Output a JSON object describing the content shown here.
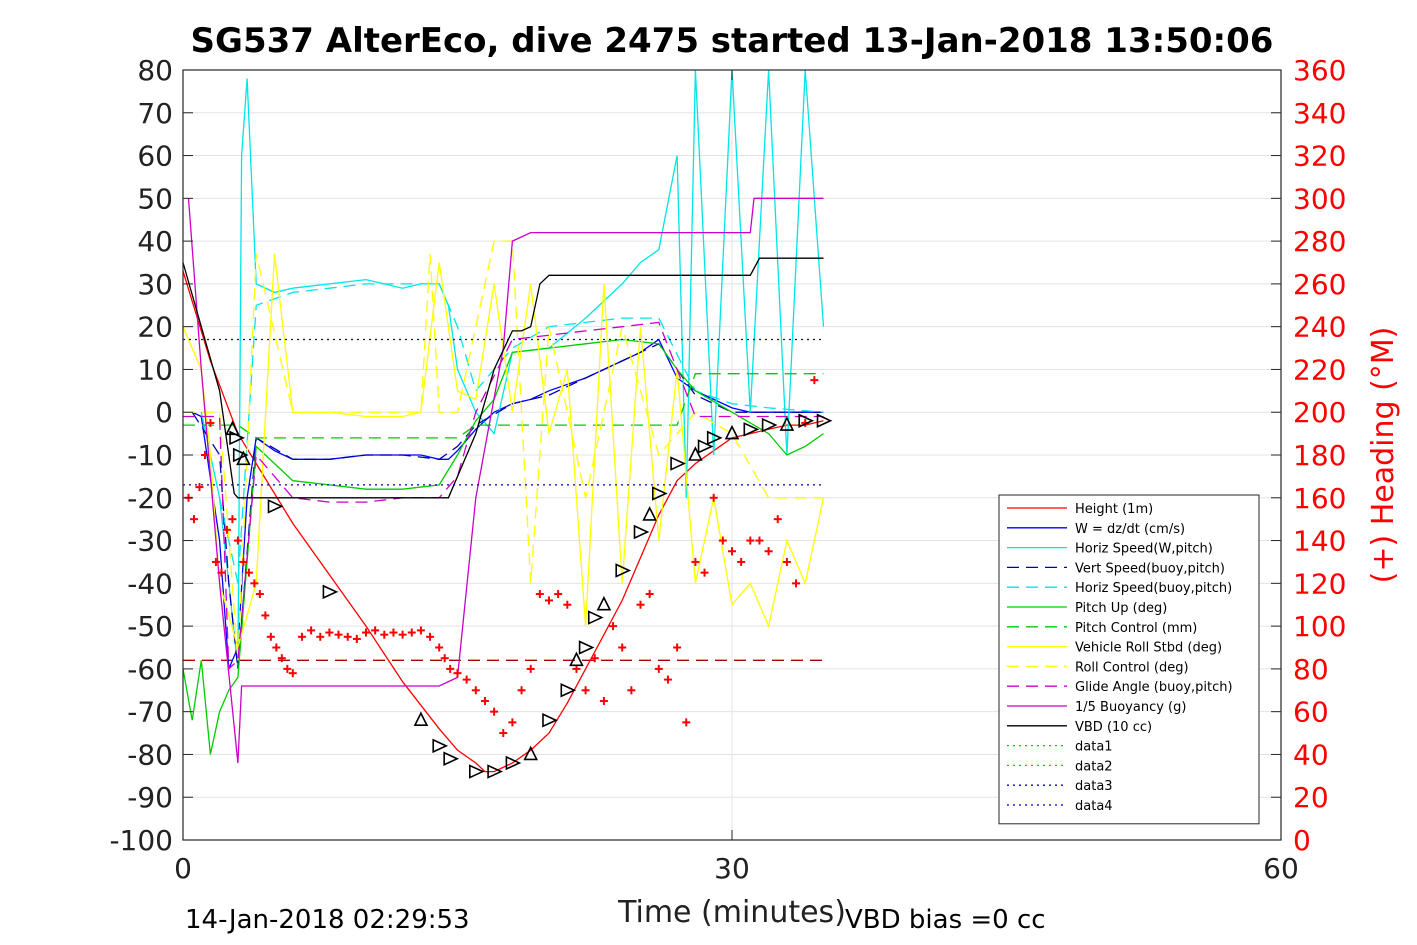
{
  "chart_data": {
    "type": "line",
    "title": "SG537 AlterEco, dive 2475 started 13-Jan-2018 13:50:06",
    "xlabel": "Time (minutes)",
    "ylabel": "",
    "y2label": "(+) Heading (°M)",
    "xlim": [
      0,
      60
    ],
    "ylim": [
      -100,
      80
    ],
    "y2lim": [
      0,
      360
    ],
    "x_ticks": [
      "0",
      "30",
      "60"
    ],
    "y_ticks": [
      "80",
      "70",
      "60",
      "50",
      "40",
      "30",
      "20",
      "10",
      "0",
      "-10",
      "-20",
      "-30",
      "-40",
      "-50",
      "-60",
      "-70",
      "-80",
      "-90",
      "-100"
    ],
    "y2_ticks": [
      "360",
      "340",
      "320",
      "300",
      "280",
      "260",
      "240",
      "220",
      "200",
      "180",
      "160",
      "140",
      "120",
      "100",
      "80",
      "60",
      "40",
      "20",
      "0"
    ],
    "grid": true,
    "legend_position": "bottom-right",
    "footer_left": "14-Jan-2018 02:29:53",
    "footer_right": "VBD bias =0 cc",
    "series": [
      {
        "name": "Height (1m)",
        "color": "#ff0000",
        "style": "solid",
        "x": [
          0,
          1.5,
          3,
          4,
          6,
          8,
          10,
          12,
          14,
          15,
          16,
          16.5,
          17,
          18,
          19,
          20,
          21,
          22,
          23,
          24,
          25,
          26,
          27,
          28,
          29,
          30,
          31,
          32,
          33,
          34,
          35
        ],
        "y": [
          33,
          12,
          -5,
          -12,
          -26,
          -38,
          -50,
          -63,
          -74,
          -79,
          -82,
          -84,
          -84,
          -82,
          -79,
          -75,
          -68,
          -60,
          -52,
          -44,
          -34,
          -24,
          -16,
          -12,
          -9,
          -6,
          -5,
          -4,
          -3,
          -3,
          -2
        ]
      },
      {
        "name": "W = dz/dt (cm/s)",
        "color": "#0000ff",
        "style": "solid",
        "x": [
          0.5,
          1,
          2,
          2.5,
          3,
          3.5,
          4,
          5,
          6,
          8,
          10,
          12,
          13,
          14,
          14.5,
          15,
          16,
          17,
          18,
          19,
          20,
          22,
          24,
          25,
          26,
          27,
          28,
          29,
          30,
          31,
          32,
          33,
          34,
          35
        ],
        "y": [
          0,
          -1,
          -30,
          -60,
          -55,
          -20,
          -6,
          -9,
          -11,
          -11,
          -10,
          -10,
          -10,
          -11,
          -11,
          -9,
          -4,
          0,
          2,
          3,
          5,
          8,
          12,
          14,
          17,
          8,
          5,
          3,
          1,
          0,
          0,
          0,
          0,
          0
        ]
      },
      {
        "name": "Horiz Speed(W,pitch)",
        "color": "#00e5e5",
        "style": "solid",
        "x": [
          1,
          2,
          2.5,
          3,
          3.2,
          3.5,
          4,
          5,
          6,
          8,
          10,
          12,
          13,
          14,
          14.5,
          15,
          16,
          17,
          18,
          20,
          22,
          24,
          25,
          26,
          27,
          27.5,
          28,
          29,
          30,
          31,
          32,
          33,
          34,
          35
        ],
        "y": [
          0,
          -20,
          -40,
          -60,
          60,
          78,
          30,
          28,
          29,
          30,
          31,
          29,
          30,
          30,
          25,
          10,
          0,
          -5,
          14,
          15,
          22,
          30,
          35,
          38,
          60,
          -20,
          80,
          -10,
          80,
          0,
          80,
          -10,
          80,
          20
        ]
      },
      {
        "name": "Vert Speed(buoy,pitch)",
        "color": "#0000aa",
        "style": "dashed",
        "x": [
          0.5,
          2,
          2.5,
          3,
          4,
          6,
          8,
          10,
          12,
          14,
          15,
          16,
          18,
          20,
          22,
          24,
          26,
          28,
          30,
          32,
          35
        ],
        "y": [
          0,
          -10,
          -40,
          -60,
          -6,
          -11,
          -11,
          -10,
          -10,
          -11,
          -8,
          -3,
          2,
          4,
          8,
          12,
          16,
          4,
          0,
          0,
          0
        ]
      },
      {
        "name": "Horiz Speed(buoy,pitch)",
        "color": "#00e5e5",
        "style": "dashed",
        "x": [
          2,
          3,
          4,
          6,
          8,
          10,
          12,
          14,
          15,
          16,
          18,
          20,
          22,
          24,
          26,
          28,
          30,
          32,
          35
        ],
        "y": [
          -20,
          -40,
          25,
          28,
          29,
          30,
          30,
          30,
          20,
          5,
          15,
          20,
          21,
          22,
          22,
          5,
          2,
          1,
          0
        ]
      },
      {
        "name": "Pitch Up (deg)",
        "color": "#00cc00",
        "style": "solid",
        "x": [
          0,
          0.5,
          1,
          1.5,
          2,
          2.5,
          3,
          4,
          6,
          8,
          10,
          12,
          14,
          15,
          16,
          17,
          18,
          20,
          22,
          24,
          26,
          27,
          28,
          30,
          32,
          33,
          34,
          35
        ],
        "y": [
          -60,
          -72,
          -58,
          -80,
          -70,
          -65,
          -62,
          -8,
          -16,
          -17,
          -18,
          -18,
          -17,
          -10,
          -2,
          3,
          14,
          15,
          16,
          17,
          16,
          10,
          5,
          0,
          -5,
          -10,
          -8,
          -5
        ]
      },
      {
        "name": "Pitch Control (mm)",
        "color": "#00cc00",
        "style": "dashed",
        "x": [
          0,
          3,
          4,
          15,
          16,
          17,
          18,
          27,
          28,
          35
        ],
        "y": [
          -3,
          -3,
          -6,
          -6,
          -3,
          -3,
          -3,
          -3,
          9,
          9
        ]
      },
      {
        "name": "Vehicle Roll Stbd (deg)",
        "color": "#ffff00",
        "style": "solid",
        "x": [
          0,
          1,
          1.5,
          2,
          3,
          4,
          5,
          6,
          8,
          10,
          12,
          13,
          14,
          15,
          16,
          17,
          18,
          19,
          20,
          21,
          22,
          23,
          24,
          25,
          26,
          27,
          28,
          29,
          30,
          31,
          32,
          33,
          34,
          35
        ],
        "y": [
          20,
          10,
          -10,
          -40,
          -55,
          -40,
          37,
          0,
          0,
          -1,
          -1,
          0,
          35,
          5,
          3,
          30,
          0,
          30,
          -5,
          10,
          -50,
          30,
          -40,
          20,
          -30,
          10,
          -40,
          -20,
          -45,
          -40,
          -50,
          -30,
          -40,
          -20
        ]
      },
      {
        "name": "Roll Control (deg)",
        "color": "#ffff00",
        "style": "dashed",
        "x": [
          0,
          2,
          3,
          4,
          6,
          13,
          13.5,
          14,
          15,
          17,
          18,
          19,
          20,
          22,
          24,
          26,
          28,
          30,
          32,
          35
        ],
        "y": [
          0,
          0,
          -58,
          37,
          0,
          0,
          37,
          0,
          0,
          40,
          40,
          -40,
          20,
          -20,
          20,
          -10,
          0,
          -5,
          -20,
          -20
        ]
      },
      {
        "name": "Glide Angle (buoy,pitch)",
        "color": "#cc00cc",
        "style": "dashed",
        "x": [
          0,
          2,
          2.5,
          3,
          4,
          6,
          8,
          10,
          12,
          14,
          15,
          16,
          18,
          20,
          22,
          24,
          26,
          28,
          30,
          35
        ],
        "y": [
          -1,
          -1,
          -60,
          -58,
          -10,
          -20,
          -21,
          -21,
          -20,
          -20,
          -15,
          0,
          17,
          18,
          19,
          20,
          21,
          -1,
          -1,
          -1
        ]
      },
      {
        "name": "1/5 Buoyancy (g)",
        "color": "#cc00cc",
        "style": "solid",
        "x": [
          0.3,
          1,
          2,
          3,
          3.2,
          10,
          14,
          15,
          16,
          17.5,
          18,
          19,
          20,
          22,
          24,
          26,
          28,
          30,
          31,
          31.2,
          35
        ],
        "y": [
          50,
          10,
          -40,
          -82,
          -64,
          -64,
          -64,
          -62,
          -20,
          15,
          40,
          42,
          42,
          42,
          42,
          42,
          42,
          42,
          42,
          50,
          50
        ]
      },
      {
        "name": "VBD (10 cc)",
        "color": "#000000",
        "style": "solid",
        "x": [
          0,
          1,
          2,
          2.8,
          3,
          5,
          10,
          14,
          14.5,
          16,
          17,
          18,
          18.5,
          19,
          19.5,
          20,
          25,
          30,
          31,
          31.5,
          35
        ],
        "y": [
          35,
          20,
          5,
          -19,
          -20,
          -20,
          -20,
          -20,
          -20,
          -5,
          10,
          19,
          19,
          20,
          30,
          32,
          32,
          32,
          32,
          36,
          36
        ]
      },
      {
        "name": "data1",
        "color": "#00cc00",
        "style": "dotted",
        "x": [],
        "y": []
      },
      {
        "name": "data2",
        "color": "#00cc00",
        "style": "dotted",
        "x": [],
        "y": []
      },
      {
        "name": "data3",
        "color": "#0000aa",
        "style": "dotted",
        "x": [
          0,
          35
        ],
        "y": [
          17,
          17
        ]
      },
      {
        "name": "data4",
        "color": "#0000aa",
        "style": "dotted",
        "x": [
          0,
          35
        ],
        "y": [
          -17,
          -17
        ]
      }
    ],
    "extra_lines": [
      {
        "color": "#aa0000",
        "style": "dashed",
        "x": [
          0,
          35
        ],
        "y": [
          -58,
          -58
        ]
      }
    ],
    "heading_points": {
      "color": "#ff0000",
      "marker": "plus",
      "axis": "right",
      "x": [
        0.3,
        0.6,
        0.9,
        1.2,
        1.5,
        1.8,
        2.1,
        2.4,
        2.7,
        3,
        3.3,
        3.6,
        3.9,
        4.2,
        4.5,
        4.8,
        5.1,
        5.4,
        5.7,
        6,
        6.5,
        7,
        7.5,
        8,
        8.5,
        9,
        9.5,
        10,
        10.5,
        11,
        11.5,
        12,
        12.5,
        13,
        13.5,
        14,
        14.3,
        14.6,
        15,
        15.5,
        16,
        16.5,
        17,
        17.5,
        18,
        18.5,
        19,
        19.5,
        20,
        20.5,
        21,
        21.5,
        22,
        22.5,
        23,
        23.5,
        24,
        24.5,
        25,
        25.5,
        26,
        26.5,
        27,
        27.5,
        28,
        28.5,
        29,
        29.5,
        30,
        30.5,
        31,
        31.5,
        32,
        32.5,
        33,
        33.5,
        34,
        34.5
      ],
      "y": [
        160,
        150,
        165,
        180,
        195,
        130,
        125,
        145,
        150,
        140,
        130,
        125,
        120,
        115,
        105,
        95,
        90,
        85,
        80,
        78,
        95,
        98,
        95,
        97,
        96,
        95,
        94,
        97,
        98,
        96,
        97,
        96,
        97,
        98,
        95,
        90,
        85,
        80,
        78,
        75,
        70,
        65,
        60,
        50,
        55,
        70,
        80,
        115,
        112,
        115,
        110,
        80,
        70,
        85,
        65,
        100,
        90,
        70,
        110,
        115,
        80,
        75,
        90,
        55,
        130,
        125,
        160,
        140,
        135,
        130,
        140,
        140,
        135,
        150,
        130,
        120,
        195,
        215
      ]
    },
    "depth_markers": {
      "color": "#000000",
      "x": [
        2.7,
        2.9,
        3.1,
        3.3,
        5,
        8,
        13,
        14,
        14.6,
        16,
        17,
        18,
        19,
        20,
        21,
        21.5,
        22,
        22.5,
        23,
        24,
        25,
        25.5,
        26,
        27,
        28,
        28.5,
        29,
        30,
        31,
        32,
        33,
        34,
        35
      ],
      "y": [
        -4,
        -6,
        -10,
        -11,
        -22,
        -42,
        -72,
        -78,
        -81,
        -84,
        -84,
        -82,
        -80,
        -72,
        -65,
        -58,
        -55,
        -48,
        -45,
        -37,
        -28,
        -24,
        -19,
        -12,
        -10,
        -8,
        -6,
        -5,
        -4,
        -3,
        -3,
        -2,
        -2
      ]
    }
  }
}
